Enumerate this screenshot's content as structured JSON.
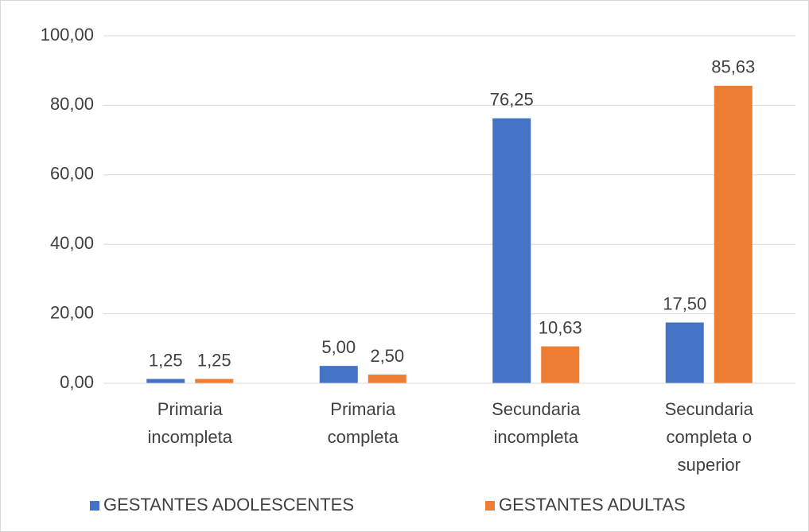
{
  "chart_data": {
    "type": "bar",
    "categories": [
      "Primaria incompleta",
      "Primaria completa",
      "Secundaria incompleta",
      "Secundaria completa o superior"
    ],
    "series": [
      {
        "name": "GESTANTES ADOLESCENTES",
        "color": "#4472c4",
        "values": [
          1.25,
          5.0,
          76.25,
          17.5
        ],
        "value_labels": [
          "1,25",
          "5,00",
          "76,25",
          "17,50"
        ]
      },
      {
        "name": "GESTANTES ADULTAS",
        "color": "#ed7d31",
        "values": [
          1.25,
          2.5,
          10.63,
          85.63
        ],
        "value_labels": [
          "1,25",
          "2,50",
          "10,63",
          "85,63"
        ]
      }
    ],
    "ylim": [
      0,
      100
    ],
    "yticks": [
      {
        "value": 0,
        "label": "0,00"
      },
      {
        "value": 20,
        "label": "20,00"
      },
      {
        "value": 40,
        "label": "40,00"
      },
      {
        "value": 60,
        "label": "60,00"
      },
      {
        "value": 80,
        "label": "80,00"
      },
      {
        "value": 100,
        "label": "100,00"
      }
    ],
    "grid": true,
    "legend": "bottom"
  }
}
